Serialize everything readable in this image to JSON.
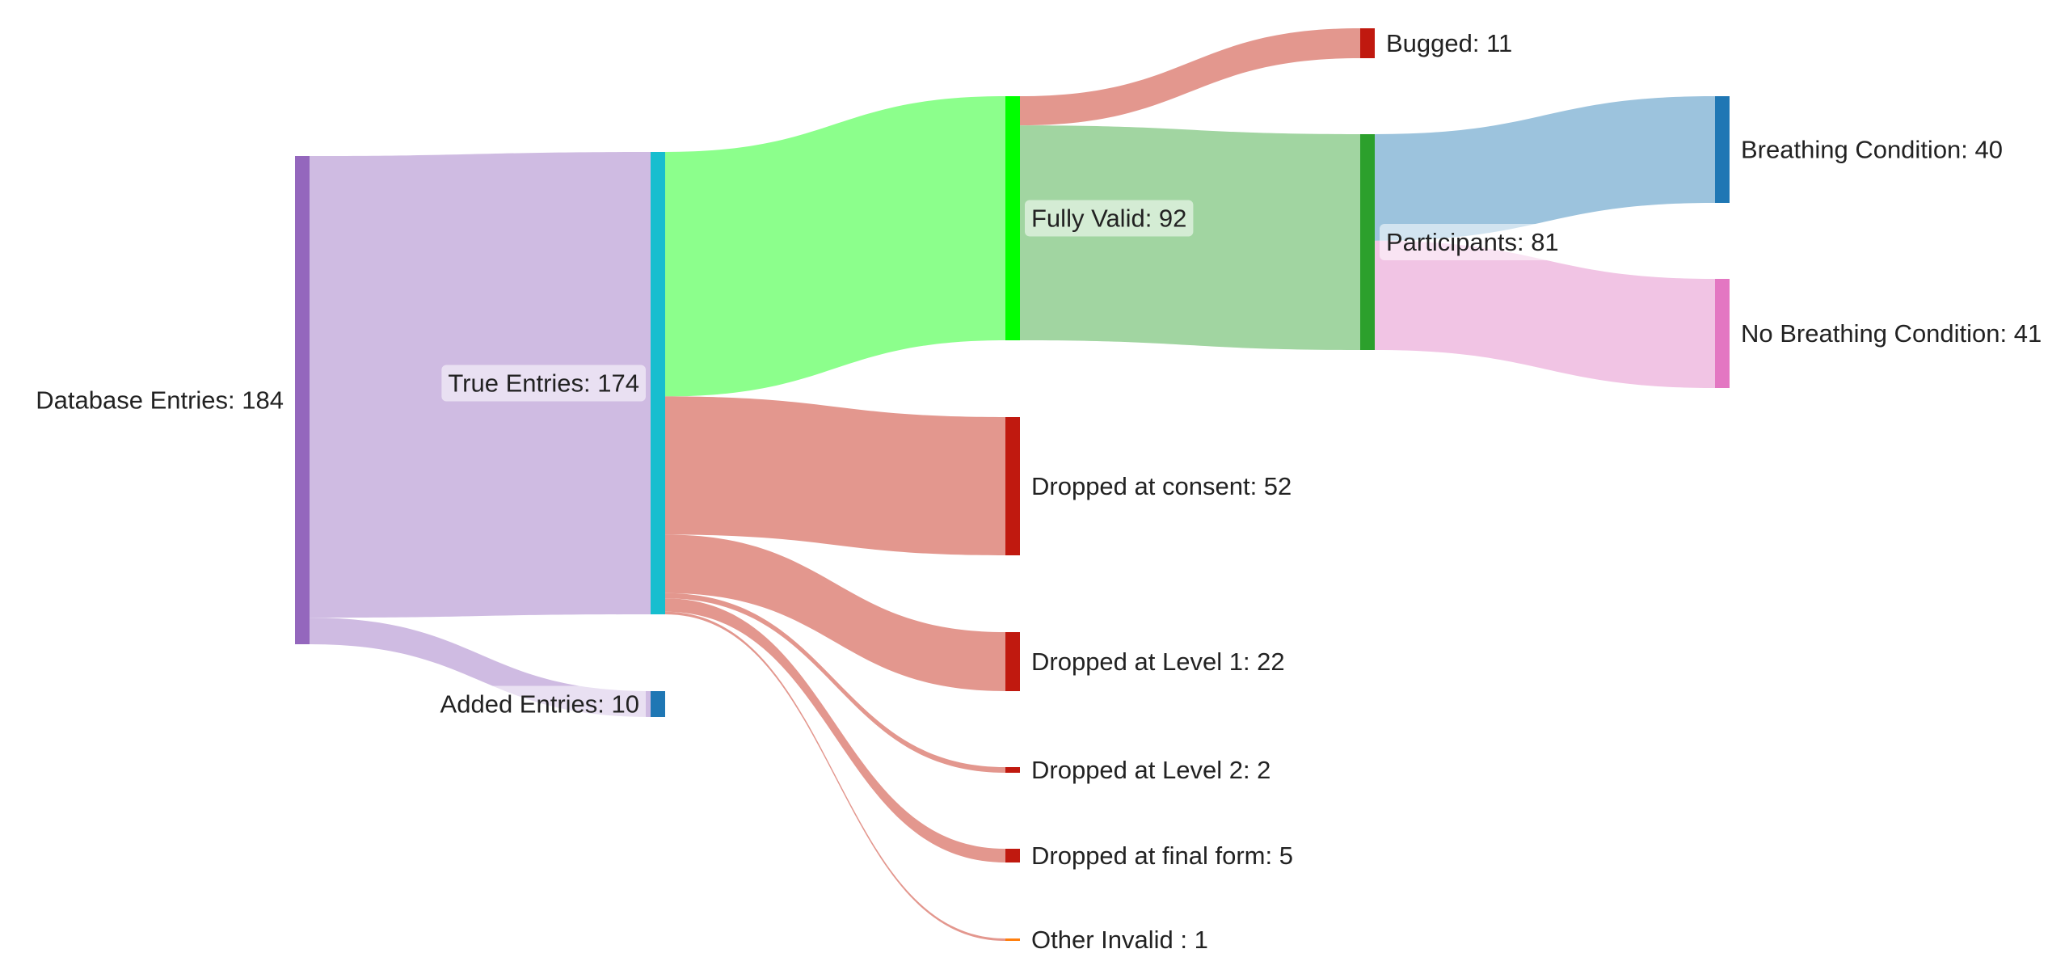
{
  "diagram": {
    "type": "sankey",
    "nodes": [
      {
        "id": "database",
        "label": "Database Entries: 184",
        "color": "#9467bd"
      },
      {
        "id": "true",
        "label": "True Entries: 174",
        "color": "#17becf"
      },
      {
        "id": "added",
        "label": "Added Entries: 10",
        "color": "#1f77b4"
      },
      {
        "id": "valid",
        "label": "Fully Valid: 92",
        "color": "#00ff00"
      },
      {
        "id": "consent",
        "label": "Dropped at consent: 52",
        "color": "#c0190f"
      },
      {
        "id": "level1",
        "label": "Dropped at Level 1: 22",
        "color": "#c0190f"
      },
      {
        "id": "level2",
        "label": "Dropped at Level 2: 2",
        "color": "#c0190f"
      },
      {
        "id": "final",
        "label": "Dropped at final form: 5",
        "color": "#c0190f"
      },
      {
        "id": "other",
        "label": "Other Invalid : 1",
        "color": "#ff7f0e"
      },
      {
        "id": "bugged",
        "label": "Bugged: 11",
        "color": "#c0190f"
      },
      {
        "id": "participants",
        "label": "Participants: 81",
        "color": "#2ca02c"
      },
      {
        "id": "breathing",
        "label": "Breathing Condition: 40",
        "color": "#1f77b4"
      },
      {
        "id": "nobreathing",
        "label": "No Breathing Condition: 41",
        "color": "#e377c2"
      }
    ],
    "links": [
      {
        "source": "database",
        "target": "true",
        "value": 174,
        "color": "#cfbbe2"
      },
      {
        "source": "database",
        "target": "added",
        "value": 10,
        "color": "#cfbbe2"
      },
      {
        "source": "true",
        "target": "valid",
        "value": 92,
        "color": "#8cff8c"
      },
      {
        "source": "true",
        "target": "consent",
        "value": 52,
        "color": "#e3978e"
      },
      {
        "source": "true",
        "target": "level1",
        "value": 22,
        "color": "#e3978e"
      },
      {
        "source": "true",
        "target": "level2",
        "value": 2,
        "color": "#e3978e"
      },
      {
        "source": "true",
        "target": "final",
        "value": 5,
        "color": "#e3978e"
      },
      {
        "source": "true",
        "target": "other",
        "value": 1,
        "color": "#e3978e"
      },
      {
        "source": "valid",
        "target": "bugged",
        "value": 11,
        "color": "#e3978e"
      },
      {
        "source": "valid",
        "target": "participants",
        "value": 81,
        "color": "#a1d5a1"
      },
      {
        "source": "participants",
        "target": "breathing",
        "value": 40,
        "color": "#9cc3dd"
      },
      {
        "source": "participants",
        "target": "nobreathing",
        "value": 41,
        "color": "#f1c4e4"
      }
    ]
  }
}
